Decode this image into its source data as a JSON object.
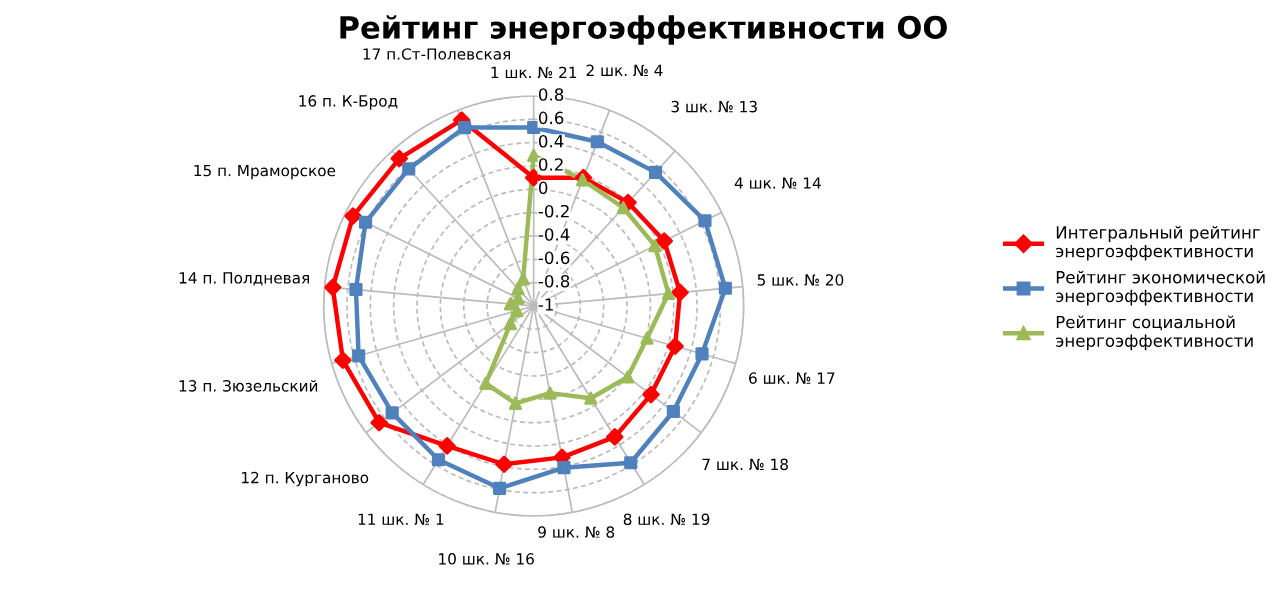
{
  "chart_data": {
    "type": "radar",
    "title": "Рейтинг энергоэффективности ОО",
    "categories": [
      "1 шк. № 21",
      "2 шк. № 4",
      "3 шк. № 13",
      "4 шк. № 14",
      "5 шк. № 20",
      "6 шк. № 17",
      "7 шк. № 18",
      "8 шк. № 19",
      "9 шк. № 8",
      "10 шк. № 16",
      "11 шк. № 1",
      "12 п. Курганово",
      "13 п. Зюзельский",
      "14 п. Полдневая",
      "15 п. Мраморское",
      "16 п. К-Брод",
      "17 п.Ст-Полевская"
    ],
    "series": [
      {
        "name": "Интегральный рейтинг энергоэффективности",
        "color": "#ff0000",
        "marker": "diamond",
        "values": [
          0.1,
          0.18,
          0.2,
          0.25,
          0.26,
          0.26,
          0.26,
          0.32,
          0.32,
          0.38,
          0.41,
          0.66,
          0.7,
          0.73,
          0.73,
          0.71,
          0.71
        ]
      },
      {
        "name": "Рейтинг экономической энергоэффективности",
        "color": "#4f81bd",
        "marker": "square",
        "values": [
          0.53,
          0.51,
          0.55,
          0.64,
          0.65,
          0.5,
          0.5,
          0.58,
          0.41,
          0.59,
          0.55,
          0.52,
          0.56,
          0.53,
          0.61,
          0.59,
          0.64
        ]
      },
      {
        "name": "Рейтинг социальной энергоэффективности",
        "color": "#9bbb59",
        "marker": "triangle",
        "values": [
          0.29,
          0.16,
          0.14,
          0.16,
          0.16,
          0.01,
          0.01,
          -0.07,
          -0.24,
          -0.15,
          -0.22,
          -0.75,
          -0.85,
          -0.8,
          -0.85,
          -0.8,
          -0.75
        ]
      }
    ],
    "ylim": [
      -1,
      0.8
    ],
    "yticks": [
      -1,
      -0.8,
      -0.6,
      -0.4,
      -0.2,
      0,
      0.2,
      0.4,
      0.6,
      0.8
    ],
    "grid": true,
    "legend": "right"
  }
}
